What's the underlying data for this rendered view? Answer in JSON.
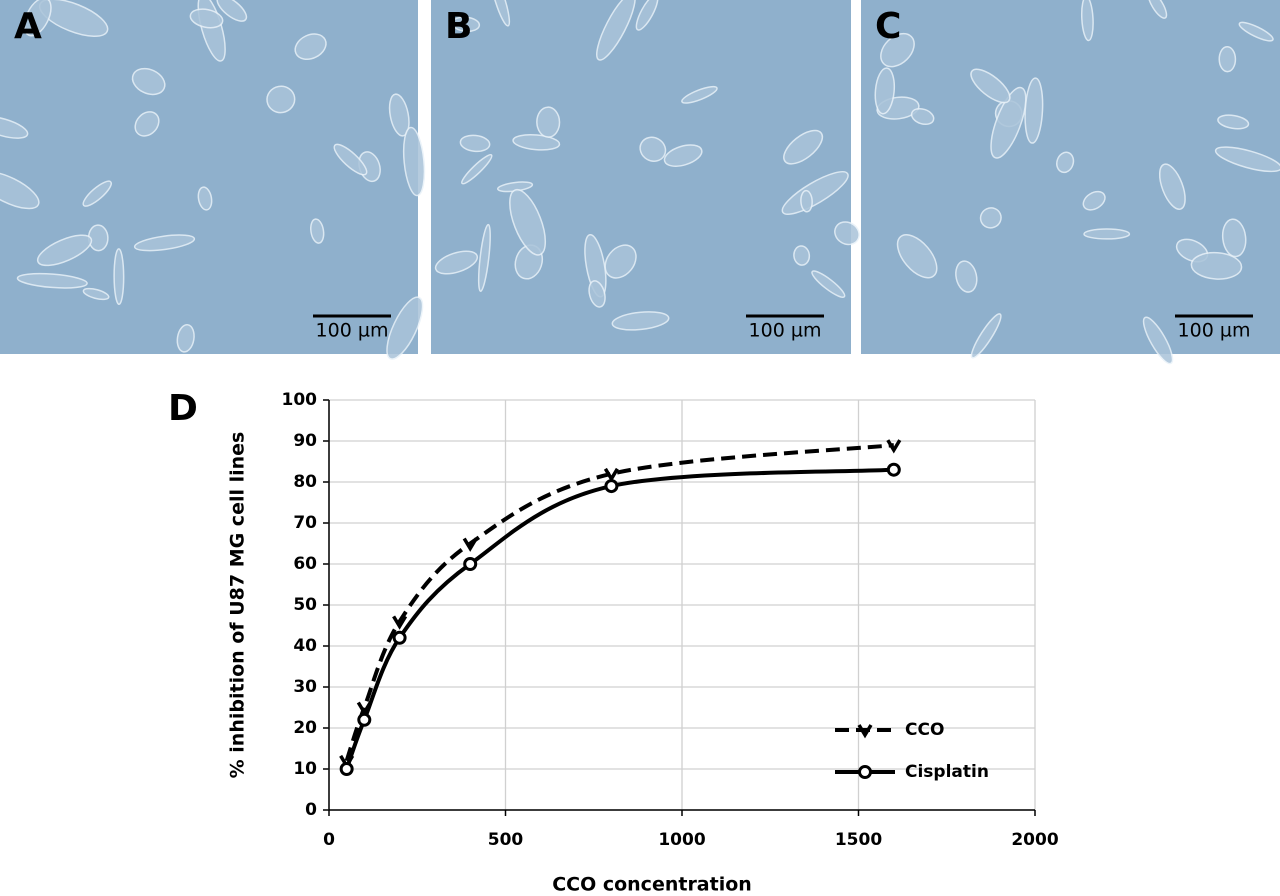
{
  "panels": [
    {
      "label": "A",
      "scale_bar": "100 µm"
    },
    {
      "label": "B",
      "scale_bar": "100 µm"
    },
    {
      "label": "C",
      "scale_bar": "100 µm"
    }
  ],
  "chart_data": {
    "type": "line",
    "panel_label": "D",
    "x_label": "CCO concentration",
    "y_label": "% inhibition of U87 MG cell lines",
    "x": [
      50,
      100,
      200,
      400,
      800,
      1600
    ],
    "series": [
      {
        "name": "CCO",
        "color": "#000000",
        "dash": true,
        "marker": "triangle-down",
        "values": [
          12,
          25,
          46,
          65,
          82,
          89
        ]
      },
      {
        "name": "Cisplatin",
        "color": "#000000",
        "dash": false,
        "marker": "circle",
        "values": [
          10,
          22,
          42,
          60,
          79,
          83
        ]
      }
    ],
    "xlim": [
      0,
      2000
    ],
    "xticks": [
      0,
      500,
      1000,
      1500,
      2000
    ],
    "ylim": [
      0,
      100
    ],
    "yticks": [
      0,
      10,
      20,
      30,
      40,
      50,
      60,
      70,
      80,
      90,
      100
    ],
    "grid": true,
    "legend": "lower right"
  }
}
